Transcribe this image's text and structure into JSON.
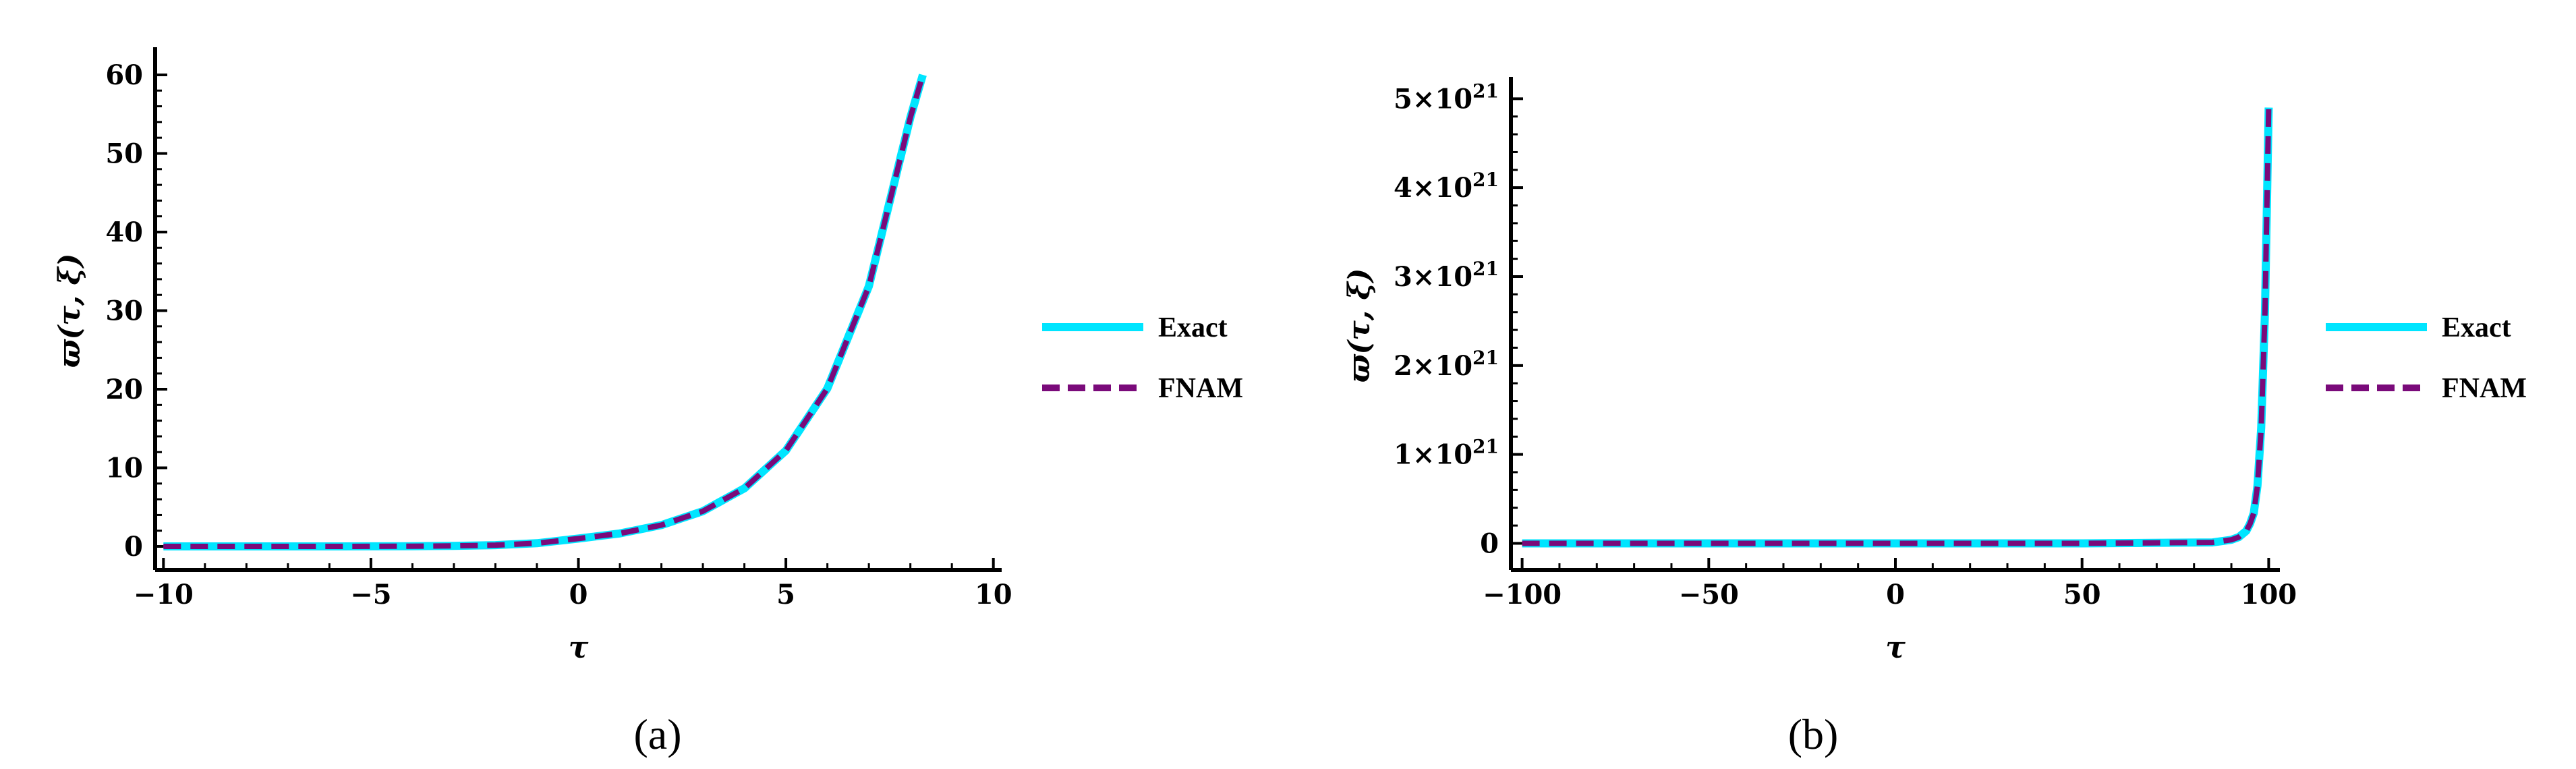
{
  "colors": {
    "exact": "#00e5ff",
    "fnam": "#7a0a7a",
    "axis": "#000000"
  },
  "chart_data": [
    {
      "type": "line",
      "panel_label": "(a)",
      "xlabel": "τ",
      "ylabel": "ϖ(τ, ξ)",
      "xlim": [
        -10.2,
        10.2
      ],
      "ylim": [
        -3,
        63
      ],
      "xticks": [
        -10,
        -5,
        0,
        5,
        10
      ],
      "xtick_labels": [
        "−10",
        "−5",
        "0",
        "5",
        "10"
      ],
      "yticks": [
        0,
        10,
        20,
        30,
        40,
        50,
        60
      ],
      "ytick_labels": [
        "0",
        "10",
        "20",
        "30",
        "40",
        "50",
        "60"
      ],
      "legend_position": "right",
      "x": [
        -10,
        -9,
        -8,
        -7,
        -6,
        -5,
        -4,
        -3,
        -2,
        -1,
        0,
        1,
        2,
        3,
        4,
        5,
        6,
        7,
        8,
        8.3
      ],
      "series": [
        {
          "name": "Exact",
          "style": "solid",
          "values": [
            0.0,
            0.0,
            0.0,
            0.0,
            0.0,
            0.01,
            0.03,
            0.07,
            0.17,
            0.41,
            1.0,
            1.65,
            2.72,
            4.48,
            7.39,
            12.2,
            20.1,
            33.1,
            54.6,
            60.0
          ]
        },
        {
          "name": "FNAM",
          "style": "dashed",
          "values": [
            0.0,
            0.0,
            0.0,
            0.0,
            0.0,
            0.01,
            0.03,
            0.07,
            0.17,
            0.41,
            1.0,
            1.65,
            2.72,
            4.48,
            7.39,
            12.2,
            20.1,
            33.1,
            54.6,
            60.0
          ]
        }
      ]
    },
    {
      "type": "line",
      "panel_label": "(b)",
      "xlabel": "τ",
      "ylabel": "ϖ(τ, ξ)",
      "xlim": [
        -103,
        103
      ],
      "ylim": [
        -3e+20,
        5.2e+21
      ],
      "xticks": [
        -100,
        -50,
        0,
        50,
        100
      ],
      "xtick_labels": [
        "−100",
        "−50",
        "0",
        "50",
        "100"
      ],
      "yticks": [
        0,
        1e+21,
        2e+21,
        3e+21,
        4e+21,
        5e+21
      ],
      "ytick_labels": [
        {
          "base": "0",
          "exp": ""
        },
        {
          "base": "1×10",
          "exp": "21"
        },
        {
          "base": "2×10",
          "exp": "21"
        },
        {
          "base": "3×10",
          "exp": "21"
        },
        {
          "base": "4×10",
          "exp": "21"
        },
        {
          "base": "5×10",
          "exp": "21"
        }
      ],
      "legend_position": "right",
      "x": [
        -100,
        -50,
        0,
        50,
        85,
        90,
        92,
        94,
        95,
        96,
        97,
        98,
        99,
        100
      ],
      "series": [
        {
          "name": "Exact",
          "style": "solid",
          "values": [
            0,
            0,
            0,
            0,
            1e+19,
            4e+19,
            7e+19,
            1.4e+20,
            2.2e+20,
            3.4e+20,
            6.5e+20,
            1.3e+21,
            2.6e+21,
            4.9e+21
          ]
        },
        {
          "name": "FNAM",
          "style": "dashed",
          "values": [
            0,
            0,
            0,
            0,
            1e+19,
            4e+19,
            7e+19,
            1.4e+20,
            2.2e+20,
            3.4e+20,
            6.5e+20,
            1.3e+21,
            2.6e+21,
            4.9e+21
          ]
        }
      ]
    }
  ]
}
